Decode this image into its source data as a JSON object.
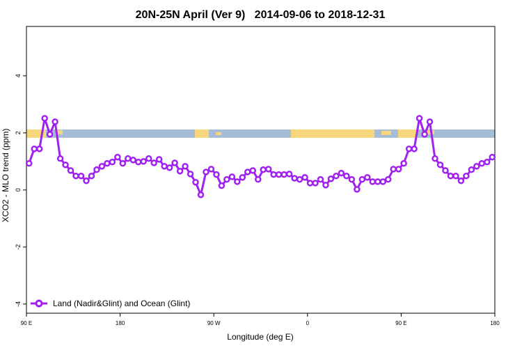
{
  "chart_data": {
    "type": "line",
    "title": "20N-25N April (Ver 9)   2014-09-06 to 2018-12-31",
    "xlabel": "Longitude (deg E)",
    "ylabel": "XCO2 - MLO trend (ppm)",
    "xlim": [
      90,
      540
    ],
    "ylim": [
      -4.32,
      5.73
    ],
    "xticks": [
      {
        "value": 90,
        "label": "90 E"
      },
      180,
      {
        "value": 270,
        "label": "90 W"
      },
      {
        "value": 360,
        "label": "0"
      },
      {
        "value": 450,
        "label": "90 E"
      },
      {
        "value": 540,
        "label": "180"
      }
    ],
    "yticks": [
      4,
      2,
      0,
      -2,
      -4
    ],
    "legend": "bottom-left",
    "x": [
      92.5,
      97.5,
      102.5,
      107.5,
      112.5,
      117.5,
      122.5,
      127.5,
      132.5,
      137.5,
      142.5,
      147.5,
      152.5,
      157.5,
      162.5,
      167.5,
      172.5,
      177.5,
      182.5,
      187.5,
      192.5,
      197.5,
      202.5,
      207.5,
      212.5,
      217.5,
      222.5,
      227.5,
      232.5,
      237.5,
      242.5,
      247.5,
      252.5,
      257.5,
      262.5,
      267.5,
      272.5,
      277.5,
      282.5,
      287.5,
      292.5,
      297.5,
      302.5,
      307.5,
      312.5,
      317.5,
      322.5,
      327.5,
      332.5,
      337.5,
      342.5,
      347.5,
      352.5,
      357.5,
      362.5,
      367.5,
      372.5,
      377.5,
      382.5,
      387.5,
      392.5,
      397.5,
      402.5,
      407.5,
      412.5,
      417.5,
      422.5,
      427.5,
      432.5,
      437.5,
      442.5,
      447.5,
      452.5,
      457.5,
      462.5,
      467.5,
      472.5,
      477.5,
      482.5,
      487.5,
      492.5,
      497.5,
      502.5,
      507.5,
      512.5,
      517.5,
      522.5,
      527.5,
      532.5,
      537.5
    ],
    "series": [
      {
        "name": "Land (Nadir&Glint) and Ocean (Glint)",
        "color": "#a020f0",
        "values": [
          0.93,
          1.44,
          1.44,
          2.51,
          1.95,
          2.39,
          1.1,
          0.88,
          0.68,
          0.49,
          0.49,
          0.32,
          0.49,
          0.71,
          0.83,
          0.93,
          0.98,
          1.15,
          0.93,
          1.1,
          1.05,
          0.98,
          1.0,
          1.1,
          0.95,
          1.07,
          0.83,
          0.78,
          0.95,
          0.66,
          0.83,
          0.56,
          0.27,
          -0.17,
          0.63,
          0.73,
          0.54,
          0.15,
          0.37,
          0.46,
          0.29,
          0.44,
          0.63,
          0.68,
          0.37,
          0.71,
          0.73,
          0.54,
          0.54,
          0.54,
          0.56,
          0.41,
          0.37,
          0.44,
          0.24,
          0.24,
          0.37,
          0.17,
          0.39,
          0.49,
          0.59,
          0.49,
          0.37,
          0.02,
          0.37,
          0.44,
          0.29,
          0.29,
          0.29,
          0.37,
          0.73,
          0.73,
          0.93,
          1.44,
          1.44,
          2.51,
          1.95,
          2.39,
          1.1,
          0.88,
          0.68,
          0.49,
          0.49,
          0.32,
          0.49,
          0.71,
          0.83,
          0.93,
          0.98,
          1.15
        ]
      }
    ]
  }
}
